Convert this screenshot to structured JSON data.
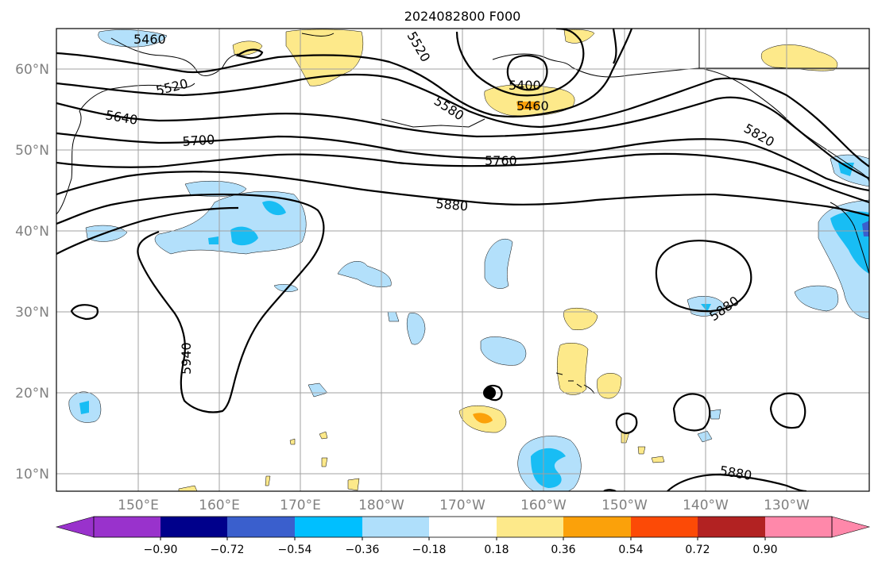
{
  "title": "2024082800 F000",
  "map": {
    "lat_labels": [
      "60°N",
      "50°N",
      "40°N",
      "30°N",
      "20°N",
      "10°N"
    ],
    "lon_labels": [
      "150°E",
      "160°E",
      "170°E",
      "180°W",
      "170°W",
      "160°W",
      "150°W",
      "140°W",
      "130°W"
    ],
    "contour_labels": [
      "5460",
      "5520",
      "5520",
      "5400",
      "5460",
      "5580",
      "5640",
      "5700",
      "5760",
      "5820",
      "5880",
      "5940",
      "5880",
      "5880"
    ],
    "colors": {
      "contour": "#000000",
      "grid": "#a0a0a0",
      "tick_label": "#808080"
    }
  },
  "colorbar": {
    "ticks": [
      "−0.90",
      "−0.72",
      "−0.54",
      "−0.36",
      "−0.18",
      "0.18",
      "0.36",
      "0.54",
      "0.72",
      "0.90"
    ],
    "colors": [
      "#9932cc",
      "#00008b",
      "#3a5fcd",
      "#00bfff",
      "#afdffb",
      "#ffffff",
      "#fde98a",
      "#fba10a",
      "#fc4a06",
      "#b22222",
      "#ff88aa"
    ],
    "extend": "both"
  }
}
